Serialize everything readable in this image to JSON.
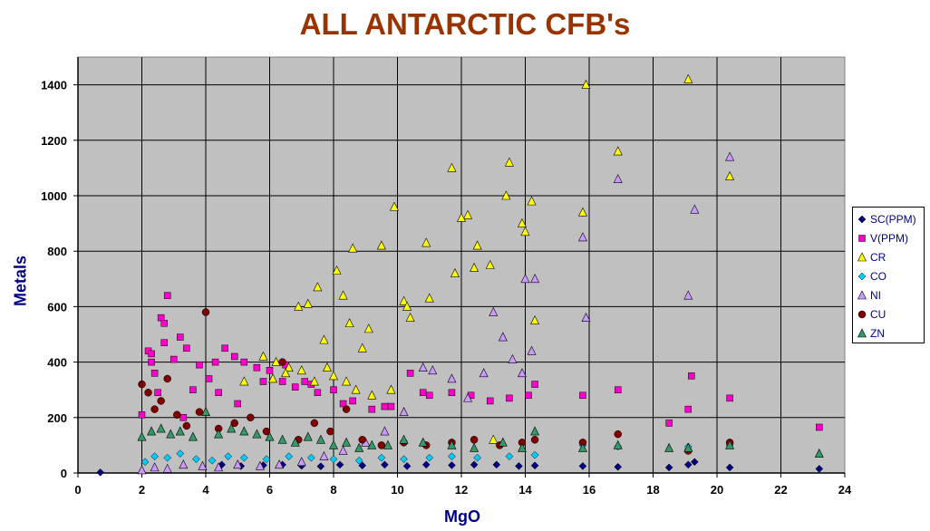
{
  "chart_data": {
    "type": "scatter",
    "title": "ALL ANTARCTIC CFB's",
    "xlabel": "MgO",
    "ylabel": "Metals",
    "xlim": [
      0,
      24
    ],
    "ylim": [
      0,
      1500
    ],
    "x_ticks": [
      "0",
      "2",
      "4",
      "6",
      "8",
      "10",
      "12",
      "14",
      "16",
      "18",
      "20",
      "22",
      "24"
    ],
    "y_ticks": [
      "0",
      "200",
      "400",
      "600",
      "800",
      "1000",
      "1200",
      "1400"
    ],
    "grid": true,
    "legend_position": "right",
    "background": "#c0c0c0",
    "series": [
      {
        "name": "SC(PPM)",
        "marker": "diamond",
        "color": "#000080",
        "x": [
          0.7,
          4.5,
          5.1,
          5.8,
          6.4,
          7.0,
          7.6,
          8.2,
          8.9,
          9.6,
          10.3,
          10.9,
          11.7,
          12.4,
          13.1,
          13.8,
          14.3,
          15.8,
          16.9,
          18.5,
          19.1,
          19.3,
          20.4,
          23.2
        ],
        "y": [
          2,
          30,
          25,
          28,
          30,
          26,
          24,
          30,
          27,
          30,
          25,
          30,
          28,
          30,
          30,
          25,
          27,
          25,
          22,
          20,
          30,
          40,
          20,
          15
        ]
      },
      {
        "name": "V(PPM)",
        "marker": "square",
        "color": "#ff00cc",
        "x": [
          2.0,
          2.2,
          2.3,
          2.4,
          2.5,
          2.6,
          2.7,
          2.8,
          3.0,
          3.2,
          3.4,
          3.6,
          3.8,
          4.1,
          4.4,
          4.6,
          4.9,
          5.2,
          5.6,
          6.0,
          6.4,
          6.8,
          7.1,
          7.5,
          8.0,
          8.6,
          9.2,
          9.8,
          10.4,
          11.0,
          11.7,
          12.3,
          12.9,
          13.5,
          14.1,
          14.3,
          15.8,
          16.9,
          18.5,
          19.1,
          19.2,
          20.4,
          23.2,
          2.3,
          2.7,
          3.3,
          4.3,
          5.0,
          5.8,
          6.5,
          7.3,
          8.3,
          9.6,
          10.8
        ],
        "y": [
          210,
          440,
          400,
          360,
          290,
          560,
          470,
          640,
          410,
          490,
          450,
          300,
          390,
          340,
          290,
          450,
          420,
          400,
          380,
          370,
          330,
          310,
          330,
          290,
          300,
          260,
          230,
          240,
          360,
          280,
          290,
          280,
          260,
          270,
          280,
          320,
          280,
          300,
          180,
          230,
          350,
          270,
          165,
          430,
          540,
          200,
          400,
          250,
          330,
          390,
          320,
          250,
          240,
          290
        ]
      },
      {
        "name": "CR",
        "marker": "triangle",
        "color": "#ffff00",
        "x": [
          5.2,
          5.8,
          6.2,
          6.6,
          6.9,
          7.2,
          7.5,
          7.7,
          8.1,
          8.3,
          8.5,
          8.6,
          8.9,
          9.1,
          9.5,
          9.9,
          10.2,
          10.4,
          10.9,
          11.7,
          11.8,
          12.2,
          12.4,
          12.5,
          12.9,
          13.4,
          13.5,
          13.9,
          14.0,
          14.2,
          14.3,
          15.8,
          15.9,
          16.9,
          19.1,
          20.4,
          6.1,
          6.5,
          7.0,
          7.4,
          7.8,
          8.0,
          8.4,
          8.7,
          9.2,
          9.8,
          10.3,
          11.0,
          12.0,
          13.0
        ],
        "y": [
          330,
          420,
          400,
          380,
          600,
          610,
          670,
          480,
          730,
          640,
          540,
          810,
          450,
          520,
          820,
          960,
          620,
          560,
          830,
          1100,
          720,
          930,
          740,
          820,
          750,
          1000,
          1120,
          900,
          870,
          980,
          550,
          940,
          1400,
          1160,
          1420,
          1070,
          340,
          360,
          370,
          330,
          380,
          350,
          330,
          300,
          280,
          300,
          600,
          630,
          920,
          120
        ]
      },
      {
        "name": "CO",
        "marker": "diamond",
        "color": "#00ccff",
        "x": [
          2.1,
          2.4,
          2.8,
          3.2,
          3.7,
          4.2,
          4.7,
          5.2,
          5.9,
          6.6,
          7.3,
          8.0,
          8.8,
          9.5,
          10.2,
          11.0,
          11.7,
          12.5,
          13.5,
          14.3,
          15.8,
          16.9,
          19.1,
          20.4
        ],
        "y": [
          40,
          60,
          55,
          70,
          50,
          45,
          60,
          55,
          50,
          60,
          55,
          50,
          45,
          55,
          50,
          55,
          60,
          55,
          60,
          65,
          100,
          95,
          95,
          100
        ]
      },
      {
        "name": "NI",
        "marker": "triangle",
        "color": "#cc99ff",
        "x": [
          2.0,
          2.4,
          2.8,
          3.3,
          3.9,
          4.4,
          5.0,
          5.7,
          6.3,
          7.0,
          7.7,
          8.3,
          9.0,
          9.6,
          10.2,
          10.8,
          11.1,
          11.7,
          12.2,
          12.7,
          13.0,
          13.3,
          13.6,
          13.9,
          14.0,
          14.2,
          14.3,
          15.8,
          15.9,
          16.9,
          19.1,
          19.3,
          20.4
        ],
        "y": [
          10,
          20,
          15,
          30,
          25,
          20,
          30,
          25,
          30,
          40,
          60,
          80,
          110,
          150,
          220,
          380,
          370,
          340,
          270,
          360,
          580,
          490,
          410,
          360,
          700,
          440,
          700,
          850,
          560,
          1060,
          640,
          950,
          1140
        ]
      },
      {
        "name": "CU",
        "marker": "circle",
        "color": "#800000",
        "x": [
          2.0,
          2.2,
          2.4,
          2.6,
          2.8,
          3.1,
          3.4,
          3.8,
          4.0,
          4.4,
          4.9,
          5.4,
          5.9,
          6.4,
          6.9,
          7.4,
          7.9,
          8.4,
          8.9,
          9.5,
          10.2,
          10.9,
          11.7,
          12.4,
          13.2,
          13.9,
          14.3,
          15.8,
          16.9,
          19.1,
          20.4
        ],
        "y": [
          320,
          290,
          230,
          260,
          340,
          210,
          170,
          220,
          580,
          160,
          180,
          200,
          150,
          400,
          120,
          180,
          150,
          230,
          120,
          100,
          110,
          100,
          110,
          120,
          100,
          110,
          120,
          110,
          140,
          80,
          110
        ]
      },
      {
        "name": "ZN",
        "marker": "triangle",
        "color": "#339966",
        "x": [
          2.0,
          2.3,
          2.6,
          2.9,
          3.2,
          3.6,
          4.0,
          4.4,
          4.8,
          5.2,
          5.6,
          6.0,
          6.4,
          6.8,
          7.2,
          7.6,
          8.0,
          8.4,
          8.8,
          9.2,
          9.7,
          10.2,
          10.8,
          11.7,
          12.4,
          13.3,
          13.9,
          14.3,
          15.8,
          16.9,
          18.5,
          19.1,
          20.4,
          23.2
        ],
        "y": [
          130,
          150,
          160,
          140,
          150,
          130,
          220,
          140,
          160,
          150,
          140,
          130,
          120,
          110,
          130,
          120,
          100,
          110,
          90,
          100,
          100,
          120,
          110,
          100,
          90,
          110,
          90,
          150,
          90,
          100,
          90,
          90,
          100,
          70
        ]
      }
    ]
  }
}
